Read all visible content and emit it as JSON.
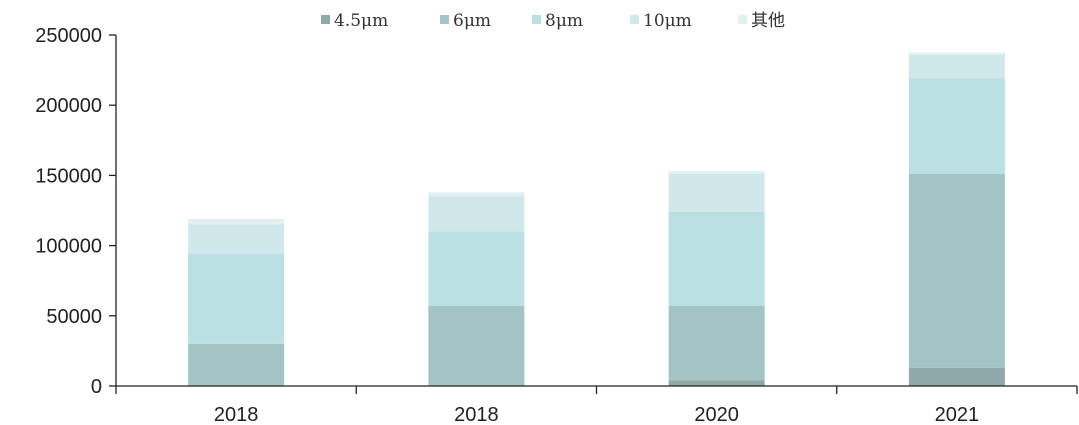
{
  "chart_data": {
    "type": "bar",
    "stacked": true,
    "categories": [
      "2018",
      "2018",
      "2020",
      "2021"
    ],
    "ylim": [
      0,
      250000
    ],
    "yticks": [
      0,
      50000,
      100000,
      150000,
      200000,
      250000
    ],
    "ytick_labels": [
      "0",
      "50000",
      "100000",
      "150000",
      "200000",
      "250000"
    ],
    "grid": false,
    "legend_position": "top",
    "series": [
      {
        "name": "4.5μm",
        "legend_label": "4.5μm",
        "color": "#8fa8a8",
        "values": [
          0,
          0,
          4000,
          13000
        ]
      },
      {
        "name": "6μm",
        "legend_label": "6μm",
        "color": "#a3c4c5",
        "values": [
          30000,
          57000,
          53000,
          138000
        ]
      },
      {
        "name": "8μm",
        "legend_label": "8μm",
        "color": "#bae0e3",
        "values": [
          64000,
          53000,
          67000,
          68000
        ]
      },
      {
        "name": "10μm",
        "legend_label": "10μm",
        "color": "#d0e8ea",
        "values": [
          21000,
          25000,
          27000,
          17000
        ]
      },
      {
        "name": "其他",
        "legend_label": "其他",
        "color": "#e1f1f2",
        "values": [
          4000,
          3000,
          2000,
          1500
        ]
      }
    ]
  }
}
